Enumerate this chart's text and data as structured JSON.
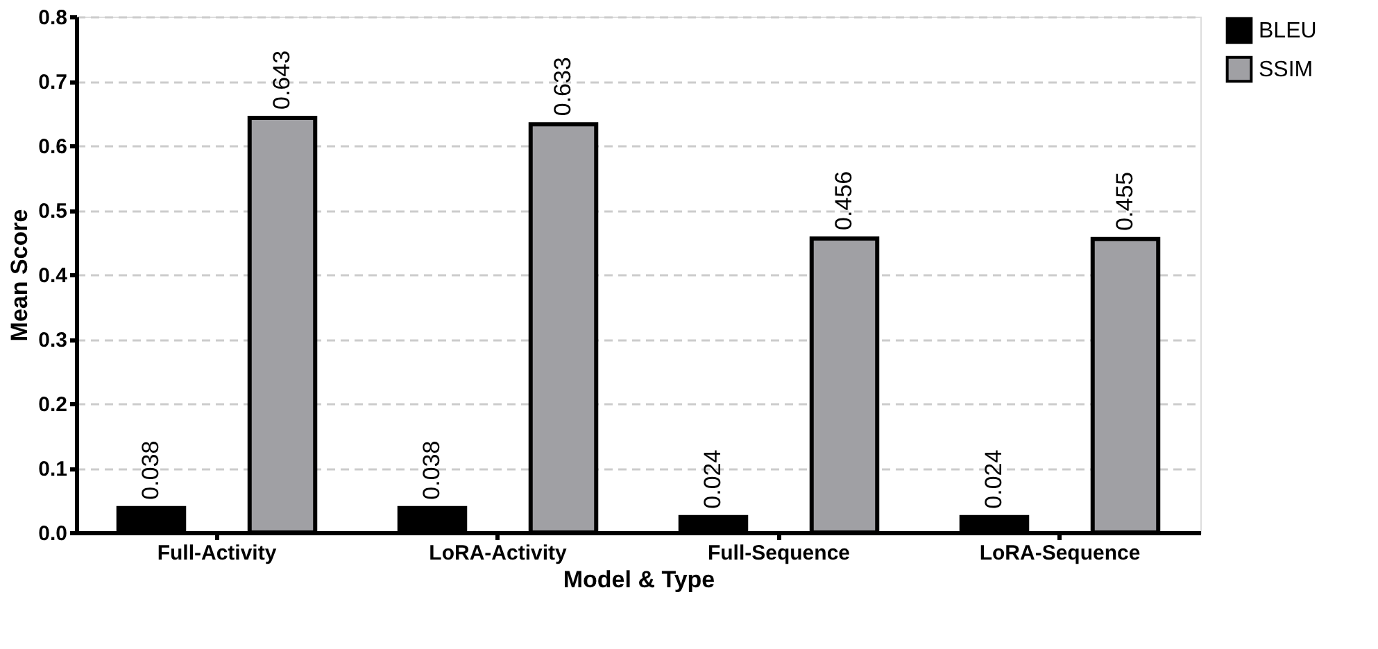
{
  "chart_data": {
    "type": "bar",
    "xlabel": "Model & Type",
    "ylabel": "Mean Score",
    "categories": [
      "Full-Activity",
      "LoRA-Activity",
      "Full-Sequence",
      "LoRA-Sequence"
    ],
    "series": [
      {
        "name": "BLEU",
        "color": "#000000",
        "values": [
          0.038,
          0.038,
          0.024,
          0.024
        ]
      },
      {
        "name": "SSIM",
        "color": "#a0a0a4",
        "values": [
          0.643,
          0.633,
          0.456,
          0.455
        ]
      }
    ],
    "ylim": [
      0,
      0.8
    ],
    "yticks": [
      {
        "value": 0,
        "label": "0.0"
      },
      {
        "value": 0.1,
        "label": "0.1"
      },
      {
        "value": 0.2,
        "label": "0.2"
      },
      {
        "value": 0.3,
        "label": "0.3"
      },
      {
        "value": 0.4,
        "label": "0.4"
      },
      {
        "value": 0.5,
        "label": "0.5"
      },
      {
        "value": 0.6,
        "label": "0.6"
      },
      {
        "value": 0.7,
        "label": "0.7"
      },
      {
        "value": 0.8,
        "label": "0.8"
      }
    ],
    "grid": "y",
    "legend": "top right",
    "data_labels": true
  }
}
